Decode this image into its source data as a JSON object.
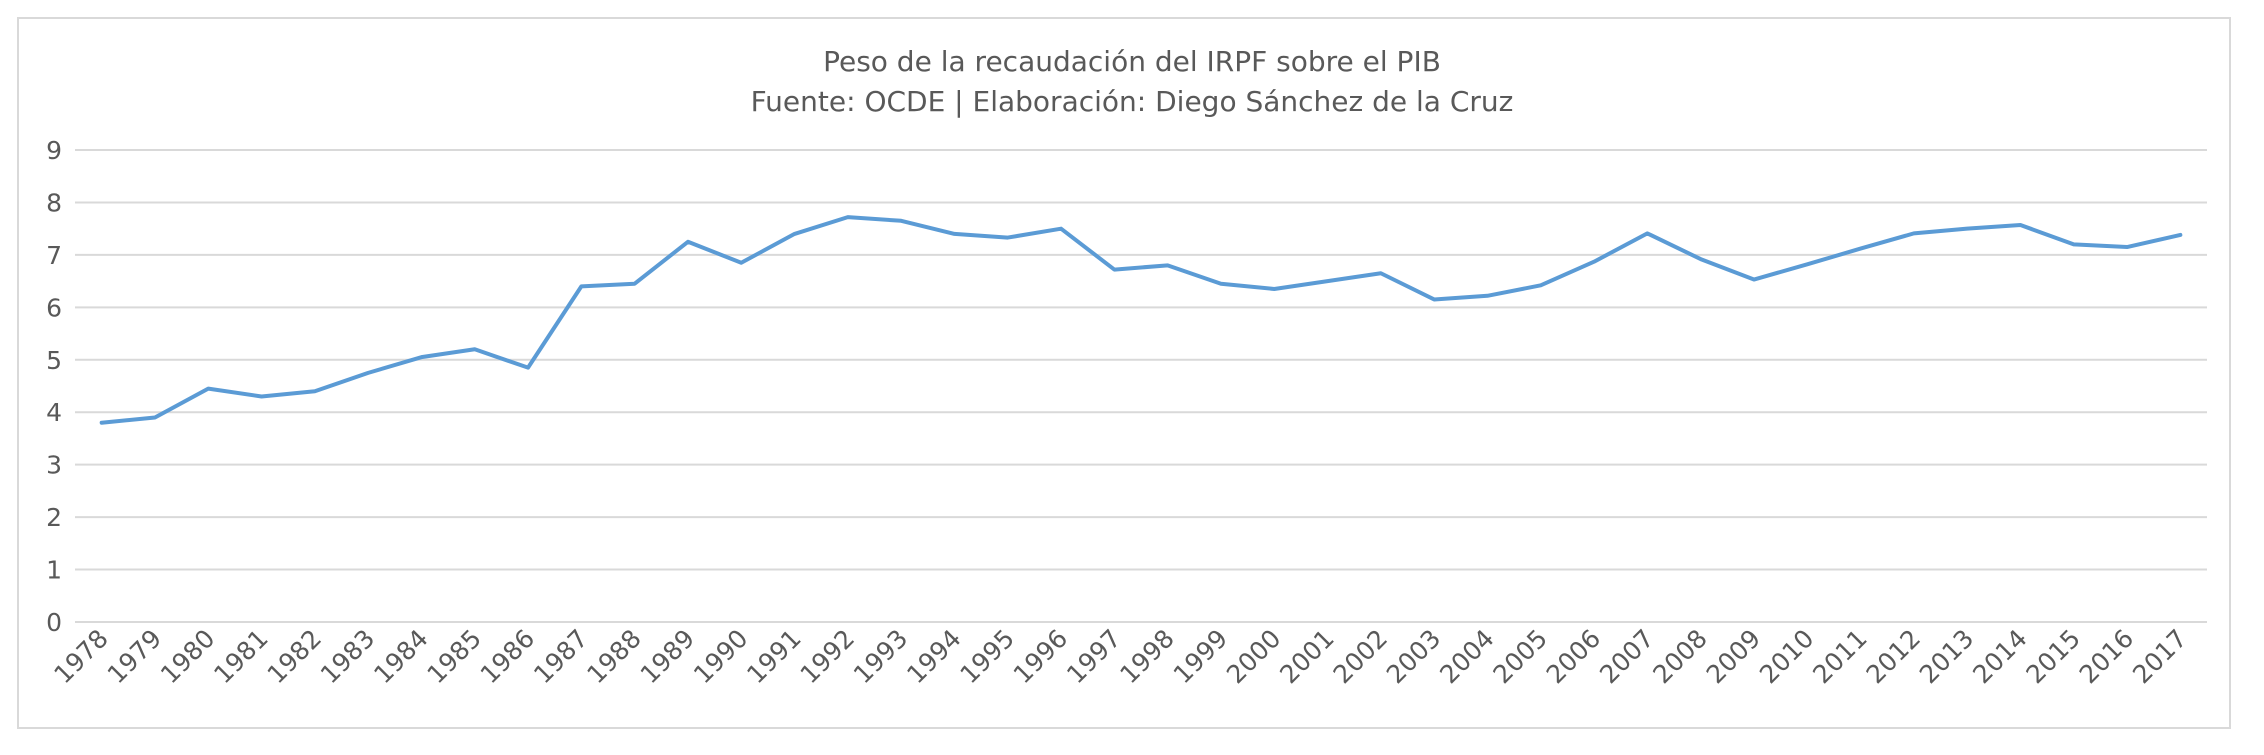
{
  "chart_data": {
    "type": "line",
    "title": "Peso de la recaudación del IRPF sobre el PIB",
    "subtitle": "Fuente: OCDE | Elaboración: Diego Sánchez de la Cruz",
    "xlabel": "",
    "ylabel": "",
    "ylim": [
      0,
      9
    ],
    "yticks": [
      0,
      1,
      2,
      3,
      4,
      5,
      6,
      7,
      8,
      9
    ],
    "grid": true,
    "legend": "none",
    "color": "#5b9bd5",
    "categories": [
      "1978",
      "1979",
      "1980",
      "1981",
      "1982",
      "1983",
      "1984",
      "1985",
      "1986",
      "1987",
      "1988",
      "1989",
      "1990",
      "1991",
      "1992",
      "1993",
      "1994",
      "1995",
      "1996",
      "1997",
      "1998",
      "1999",
      "2000",
      "2001",
      "2002",
      "2003",
      "2004",
      "2005",
      "2006",
      "2007",
      "2008",
      "2009",
      "2010",
      "2011",
      "2012",
      "2013",
      "2014",
      "2015",
      "2016",
      "2017"
    ],
    "values": [
      3.8,
      3.9,
      4.45,
      4.3,
      4.4,
      4.75,
      5.05,
      5.2,
      4.85,
      6.4,
      6.45,
      7.25,
      6.85,
      7.4,
      7.72,
      7.65,
      7.4,
      7.33,
      7.5,
      6.72,
      6.8,
      6.45,
      6.35,
      6.5,
      6.65,
      6.15,
      6.22,
      6.42,
      6.87,
      7.41,
      6.92,
      6.53,
      6.82,
      7.12,
      7.41,
      7.5,
      7.57,
      7.2,
      7.15,
      7.38
    ]
  }
}
